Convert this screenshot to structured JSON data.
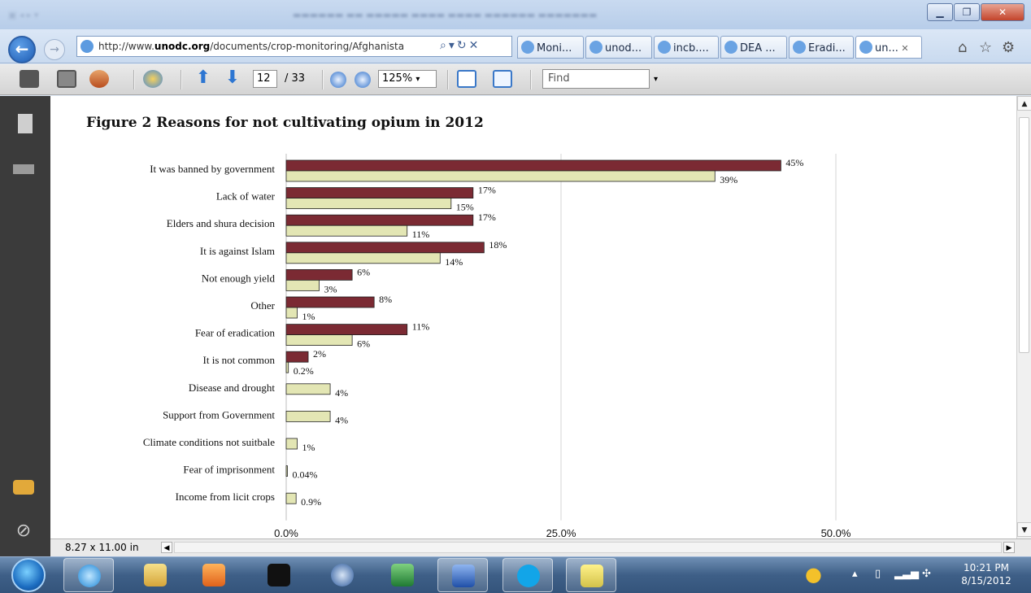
{
  "browser": {
    "url_prefix": "http://www.",
    "url_domain": "unodc.org",
    "url_path": "/documents/crop-monitoring/Afghanista",
    "tabs": [
      {
        "label": "Moni..."
      },
      {
        "label": "unod..."
      },
      {
        "label": "incb...."
      },
      {
        "label": "DEA ..."
      },
      {
        "label": "Eradi..."
      },
      {
        "label": "un...",
        "active": true
      }
    ]
  },
  "pdf_toolbar": {
    "page_current": "12",
    "page_total": "/ 33",
    "zoom": "125%",
    "find_placeholder": "Find"
  },
  "document": {
    "figure_title": "Figure 2   Reasons for not cultivating opium in 2012",
    "page_size": "8.27 x 11.00 in"
  },
  "chart_data": {
    "type": "bar",
    "orientation": "horizontal",
    "categories": [
      "It was banned by government",
      "Lack of water",
      "Elders and shura decision",
      "It is against Islam",
      "Not enough yield",
      "Other",
      "Fear of eradication",
      "It is not common",
      "Disease and drought",
      "Support from Government",
      "Climate conditions not suitbale",
      "Fear of imprisonment",
      "Income from licit crops"
    ],
    "series": [
      {
        "color": "#7b2a33",
        "values": [
          45,
          17,
          17,
          18,
          6,
          8,
          11,
          2,
          null,
          null,
          null,
          null,
          null
        ],
        "labels": [
          "45%",
          "17%",
          "17%",
          "18%",
          "6%",
          "8%",
          "11%",
          "2%",
          "",
          "",
          "",
          "",
          ""
        ]
      },
      {
        "color": "#e3e6b4",
        "values": [
          39,
          15,
          11,
          14,
          3,
          1,
          6,
          0.2,
          4,
          4,
          1,
          0.04,
          0.9
        ],
        "labels": [
          "39%",
          "15%",
          "11%",
          "14%",
          "3%",
          "1%",
          "6%",
          "0.2%",
          "4%",
          "4%",
          "1%",
          "0.04%",
          "0.9%"
        ]
      }
    ],
    "xlim": [
      0,
      50
    ],
    "xticks": [
      0,
      25,
      50
    ],
    "xtick_labels": [
      "0.0%",
      "25.0%",
      "50.0%"
    ],
    "grid": true
  },
  "taskbar": {
    "time": "10:21 PM",
    "date": "8/15/2012"
  }
}
